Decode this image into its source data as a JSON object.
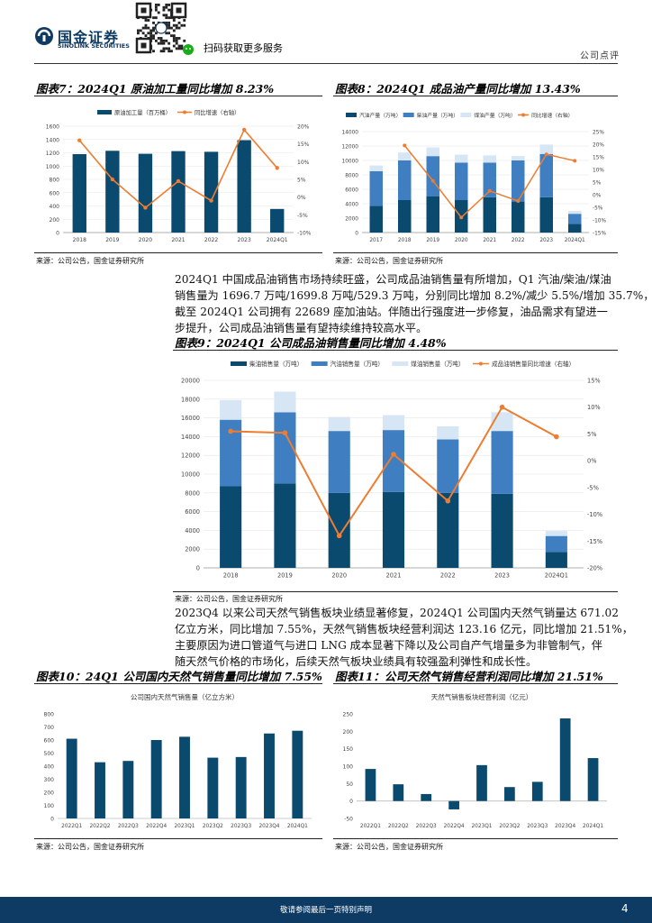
{
  "header": {
    "brand_cn": "国金证券",
    "brand_en": "SINOLINK SECURITIES",
    "qr_caption": "扫码获取更多服务",
    "report_type": "公司点评"
  },
  "fig7": {
    "title": "图表7：2024Q1 原油加工量同比增加 8.23%",
    "source": "来源：公司公告，国金证券研究所",
    "chart_data": {
      "type": "bar",
      "categories": [
        "2018",
        "2019",
        "2020",
        "2021",
        "2022",
        "2023",
        "2024Q1"
      ],
      "series": [
        {
          "name": "原油加工量（百万桶）",
          "type": "bar",
          "axis": "left",
          "values": [
            1180,
            1230,
            1185,
            1225,
            1215,
            1390,
            355
          ]
        },
        {
          "name": "同比增速（右轴）",
          "type": "line",
          "axis": "right",
          "values": [
            16,
            5,
            -3,
            4.5,
            -1,
            19,
            8.23
          ]
        }
      ],
      "yticks_left": [
        "0",
        "200",
        "400",
        "600",
        "800",
        "1000",
        "1200",
        "1400",
        "1600"
      ],
      "yticks_right": [
        "-10%",
        "-5%",
        "0%",
        "5%",
        "10%",
        "15%",
        "20%"
      ],
      "ylim_left": [
        0,
        1600
      ],
      "ylim_right": [
        -10,
        20
      ]
    }
  },
  "fig8": {
    "title": "图表8：2024Q1 成品油产量同比增加 13.43%",
    "source": "来源：公司公告，国金证券研究所",
    "chart_data": {
      "type": "bar",
      "categories": [
        "2017",
        "2018",
        "2019",
        "2020",
        "2021",
        "2022",
        "2023",
        "2024Q1"
      ],
      "series": [
        {
          "name": "汽油产量（万吨）",
          "type": "bar",
          "axis": "left",
          "stack": "s",
          "values": [
            3700,
            4500,
            5000,
            4500,
            4900,
            4300,
            4900,
            1200
          ]
        },
        {
          "name": "柴油产量（万吨）",
          "type": "bar",
          "axis": "left",
          "stack": "s",
          "values": [
            4800,
            5500,
            5600,
            5200,
            4800,
            5700,
            6000,
            1400
          ]
        },
        {
          "name": "煤油产量（万吨）",
          "type": "bar",
          "axis": "left",
          "stack": "s",
          "values": [
            800,
            1100,
            1200,
            1100,
            1000,
            600,
            1300,
            400
          ]
        },
        {
          "name": "同比增速（右轴）",
          "type": "line",
          "axis": "right",
          "values": [
            null,
            19.5,
            5.5,
            -9,
            1.5,
            -2.5,
            16,
            13.43
          ]
        }
      ],
      "yticks_left": [
        "0",
        "2000",
        "4000",
        "6000",
        "8000",
        "10000",
        "12000",
        "14000"
      ],
      "yticks_right": [
        "-15%",
        "-10%",
        "-5%",
        "0%",
        "5%",
        "10%",
        "15%",
        "20%",
        "25%"
      ],
      "ylim_left": [
        0,
        14000
      ],
      "ylim_right": [
        -15,
        25
      ]
    }
  },
  "para1": {
    "lines": [
      "2024Q1 中国成品油销售市场持续旺盛，公司成品油销售量有所增加，Q1 汽油/柴油/煤油",
      "销售量为 1696.7 万吨/1699.8 万吨/529.3 万吨，分别同比增加 8.2%/减少 5.5%/增加 35.7%，",
      "截至 2024Q1 公司拥有 22689 座加油站。伴随出行强度进一步修复，油品需求有望进一",
      "步提升，公司成品油销售量有望持续维持较高水平。"
    ]
  },
  "fig9": {
    "title": "图表9：2024Q1 公司成品油销售量同比增加 4.48%",
    "source": "来源：公司公告，国金证券研究所",
    "chart_data": {
      "type": "bar",
      "categories": [
        "2018",
        "2019",
        "2020",
        "2021",
        "2022",
        "2023",
        "2024Q1"
      ],
      "series": [
        {
          "name": "柴油销售量（万吨）",
          "type": "bar",
          "axis": "left",
          "stack": "s",
          "values": [
            8700,
            9000,
            8000,
            8100,
            8000,
            7900,
            1700
          ]
        },
        {
          "name": "汽油销售量（万吨）",
          "type": "bar",
          "axis": "left",
          "stack": "s",
          "values": [
            7100,
            7600,
            6600,
            6600,
            5700,
            6700,
            1700
          ]
        },
        {
          "name": "煤油销售量（万吨）",
          "type": "bar",
          "axis": "left",
          "stack": "s",
          "values": [
            2100,
            2200,
            1500,
            1600,
            1400,
            2000,
            530
          ]
        },
        {
          "name": "成品油销售量同比增速（右轴）",
          "type": "line",
          "axis": "right",
          "values": [
            5.5,
            5.2,
            -14,
            1.2,
            -7.5,
            10,
            4.48
          ]
        }
      ],
      "yticks_left": [
        "0",
        "2000",
        "4000",
        "6000",
        "8000",
        "10000",
        "12000",
        "14000",
        "16000",
        "18000",
        "20000"
      ],
      "yticks_right": [
        "-20%",
        "-15%",
        "-10%",
        "-5%",
        "0%",
        "5%",
        "10%",
        "15%"
      ],
      "ylim_left": [
        0,
        20000
      ],
      "ylim_right": [
        -20,
        15
      ]
    }
  },
  "para2": {
    "lines": [
      "2023Q4 以来公司天然气销售板块业绩显著修复，2024Q1 公司国内天然气销量达 671.02",
      "亿立方米，同比增加 7.55%，天然气销售板块经营利润达 123.16 亿元，同比增加 21.51%，",
      "主要原因为进口管道气与进口 LNG 成本显著下降以及公司自产气增量多为非管制气，伴",
      "随天然气价格的市场化，后续天然气板块业绩具有较强盈利弹性和成长性。"
    ]
  },
  "fig10": {
    "title": "图表10：24Q1 公司国内天然气销售量同比增加 7.55%",
    "source": "来源：公司公告，国金证券研究所",
    "chart_data": {
      "type": "bar",
      "title": "公司国内天然气销售量（亿立方米）",
      "categories": [
        "2022Q1",
        "2022Q2",
        "2022Q3",
        "2022Q4",
        "2023Q1",
        "2023Q2",
        "2023Q3",
        "2023Q4",
        "2024Q1"
      ],
      "values": [
        610,
        430,
        440,
        600,
        625,
        465,
        470,
        650,
        671.02
      ],
      "yticks": [
        "0",
        "100",
        "200",
        "300",
        "400",
        "500",
        "600",
        "700",
        "800"
      ],
      "ylim": [
        0,
        800
      ]
    }
  },
  "fig11": {
    "title": "图表11：公司天然气销售经营利润同比增加 21.51%",
    "source": "来源：公司公告，国金证券研究所",
    "chart_data": {
      "type": "bar",
      "title": "天然气销售板块经营利润（亿元）",
      "categories": [
        "2022Q1",
        "2022Q2",
        "2022Q3",
        "2022Q4",
        "2023Q1",
        "2023Q2",
        "2023Q3",
        "2023Q4",
        "2024Q1"
      ],
      "values": [
        92,
        48,
        20,
        -24,
        103,
        40,
        55,
        237,
        123.16
      ],
      "yticks": [
        "-50",
        "0",
        "50",
        "100",
        "150",
        "200",
        "250"
      ],
      "ylim": [
        -50,
        250
      ]
    }
  },
  "footer": {
    "disclaimer": "敬请参阅最后一页特别声明",
    "page_number": "4"
  },
  "colors": {
    "navy": "#0b4a6f",
    "blue": "#3f7fc1",
    "light": "#d6e6f4",
    "orange": "#ed7d31",
    "footer_bar": "#0e3b63"
  }
}
